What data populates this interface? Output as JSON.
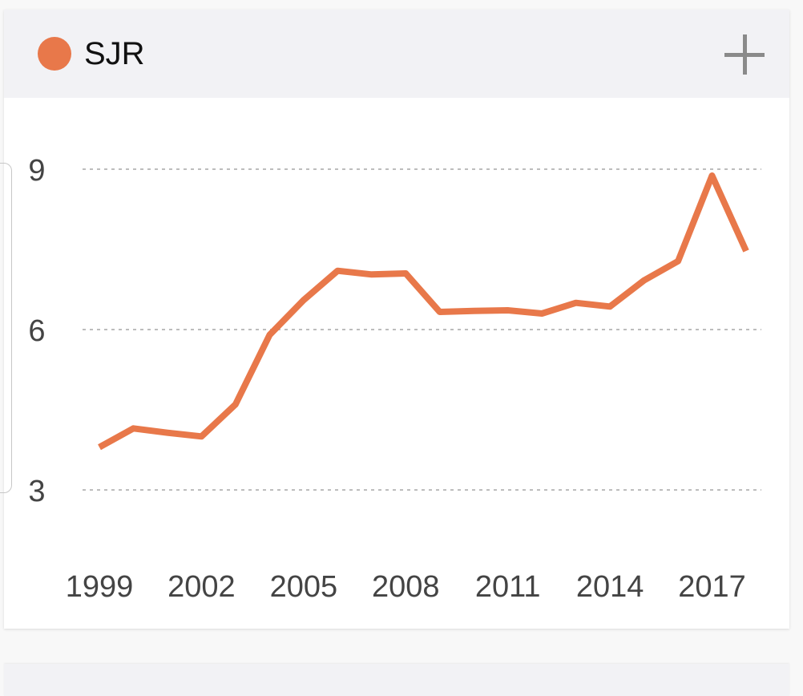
{
  "legend": {
    "label": "SJR",
    "color": "#e8784a"
  },
  "add_button": {
    "icon": "plus-icon"
  },
  "chart_data": {
    "type": "line",
    "title": "",
    "xlabel": "",
    "ylabel": "",
    "x": [
      1999,
      2000,
      2001,
      2002,
      2003,
      2004,
      2005,
      2006,
      2007,
      2008,
      2009,
      2010,
      2011,
      2012,
      2013,
      2014,
      2015,
      2016,
      2017,
      2018
    ],
    "series": [
      {
        "name": "SJR",
        "color": "#e8784a",
        "values": [
          3.8,
          4.15,
          4.07,
          4.0,
          4.6,
          5.9,
          6.55,
          7.1,
          7.03,
          7.05,
          6.33,
          6.35,
          6.36,
          6.3,
          6.5,
          6.43,
          6.92,
          7.28,
          8.88,
          7.47
        ]
      }
    ],
    "ylim": [
      3,
      9
    ],
    "y_ticks": [
      9,
      6,
      3
    ],
    "x_ticks": [
      1999,
      2002,
      2005,
      2008,
      2011,
      2014,
      2017
    ],
    "grid": true,
    "grid_style": "dotted",
    "legend_position": "top-left"
  }
}
